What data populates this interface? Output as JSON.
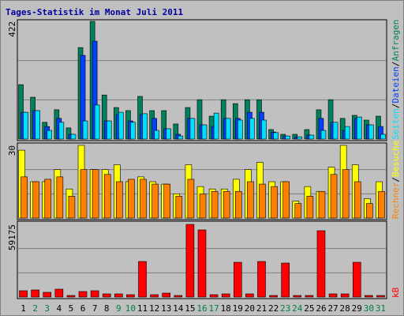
{
  "chart_data": [
    {
      "type": "bar",
      "title": "Tages-Statistik im Monat Juli 2011",
      "legend_separator": "/",
      "ylim": [
        0,
        422
      ],
      "yticks": [
        422
      ],
      "series": [
        {
          "name": "Anfragen",
          "color": "#00805c",
          "values": [
            195,
            150,
            60,
            105,
            40,
            328,
            422,
            158,
            113,
            102,
            153,
            102,
            102,
            54,
            113,
            141,
            82,
            141,
            127,
            141,
            141,
            34,
            17,
            17,
            34,
            105,
            141,
            74,
            85,
            68,
            82
          ]
        },
        {
          "name": "Dateien",
          "color": "#0040ff",
          "values": [
            96,
            102,
            45,
            74,
            17,
            300,
            351,
            65,
            88,
            65,
            88,
            74,
            37,
            17,
            74,
            51,
            45,
            74,
            74,
            96,
            96,
            25,
            11,
            8,
            14,
            74,
            60,
            31,
            74,
            51,
            45
          ]
        },
        {
          "name": "Seiten",
          "color": "#00e0ff",
          "values": [
            96,
            102,
            31,
            60,
            17,
            65,
            122,
            65,
            96,
            60,
            91,
            31,
            37,
            11,
            74,
            51,
            93,
            74,
            68,
            74,
            68,
            23,
            11,
            8,
            14,
            31,
            60,
            45,
            79,
            51,
            17
          ]
        }
      ]
    },
    {
      "type": "bar",
      "ylim": [
        0,
        30
      ],
      "yticks": [
        30
      ],
      "series": [
        {
          "name": "Besuche",
          "color": "#ffff00",
          "values": [
            28,
            15,
            15,
            20,
            12,
            30,
            20,
            20,
            22,
            15,
            17,
            15,
            14,
            10,
            22,
            13,
            12,
            12,
            16,
            20,
            23,
            15,
            15,
            7,
            13,
            11,
            21,
            30,
            22,
            8,
            15
          ]
        },
        {
          "name": "Rechner",
          "color": "#ff8000",
          "values": [
            17,
            15,
            16,
            17,
            9,
            20,
            20,
            18,
            15,
            16,
            16,
            14,
            14,
            9,
            16,
            10,
            11,
            11,
            11,
            15,
            14,
            13,
            15,
            6,
            9,
            11,
            18,
            20,
            15,
            6,
            11
          ]
        }
      ]
    },
    {
      "type": "bar",
      "ylim": [
        0,
        59175
      ],
      "yticks": [
        59175
      ],
      "categories": [
        "1",
        "2",
        "3",
        "4",
        "5",
        "6",
        "7",
        "8",
        "9",
        "10",
        "11",
        "12",
        "13",
        "14",
        "15",
        "16",
        "17",
        "18",
        "19",
        "20",
        "21",
        "22",
        "23",
        "24",
        "25",
        "26",
        "27",
        "28",
        "29",
        "30",
        "31"
      ],
      "category_colors": [
        "#000000",
        "#008040",
        "#008040",
        "#000000",
        "#000000",
        "#000000",
        "#000000",
        "#000000",
        "#008040",
        "#008040",
        "#000000",
        "#000000",
        "#000000",
        "#000000",
        "#000000",
        "#008040",
        "#008040",
        "#000000",
        "#000000",
        "#000000",
        "#000000",
        "#000000",
        "#008040",
        "#008040",
        "#000000",
        "#000000",
        "#000000",
        "#000000",
        "#000000",
        "#008040",
        "#008040"
      ],
      "series": [
        {
          "name": "kB",
          "color": "#ff0000",
          "values": [
            5144,
            5787,
            3858,
            6430,
            1286,
            4500,
            5144,
            2572,
            2572,
            1929,
            28935,
            1929,
            3215,
            1286,
            59175,
            54674,
            1929,
            2572,
            28292,
            2572,
            28935,
            1286,
            27649,
            1286,
            1286,
            54031,
            2572,
            2572,
            28292,
            1286,
            1286
          ]
        }
      ]
    }
  ]
}
